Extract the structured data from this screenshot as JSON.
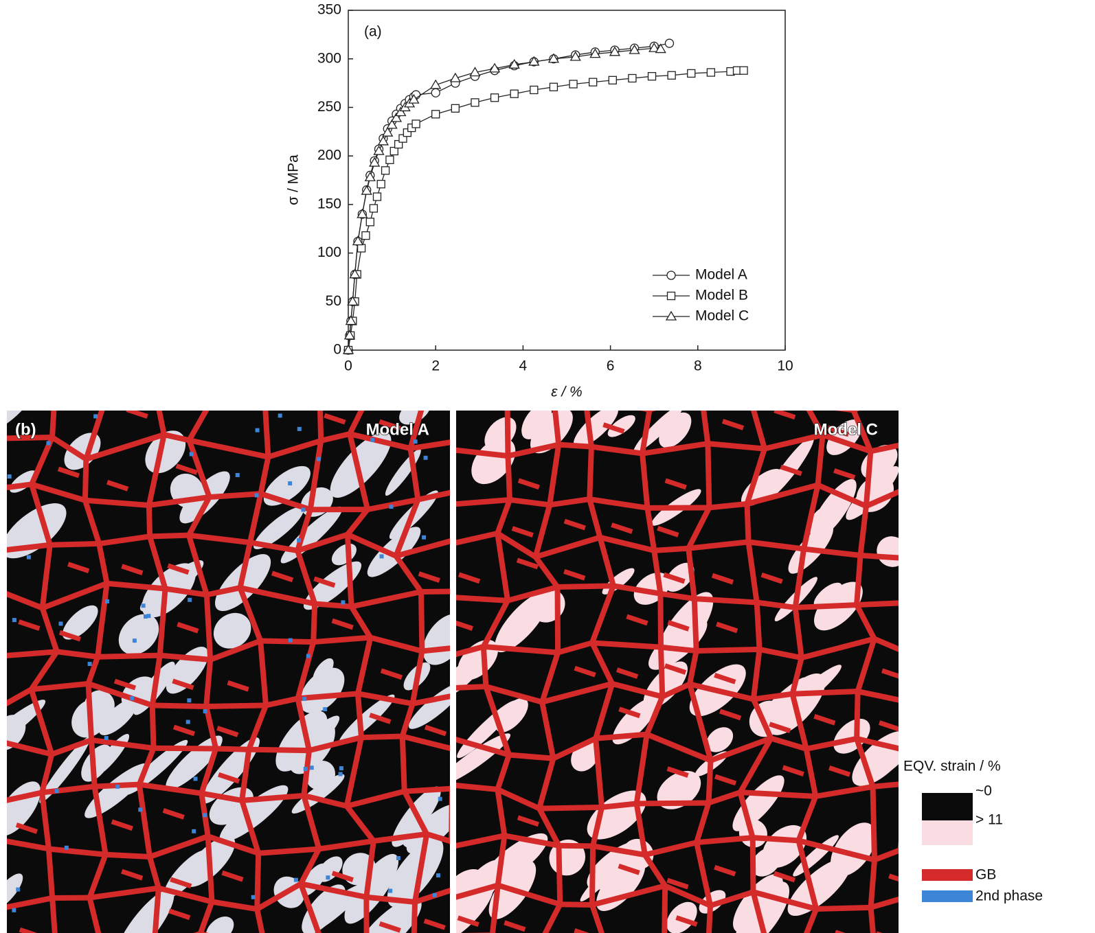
{
  "chart_data": {
    "type": "line",
    "panel_label": "(a)",
    "x_label": "ε / %",
    "y_label": "σ / MPa",
    "xlim": [
      0,
      10
    ],
    "xticks": [
      0,
      2,
      4,
      6,
      8,
      10
    ],
    "ylim": [
      0,
      350
    ],
    "yticks": [
      0,
      50,
      100,
      150,
      200,
      250,
      300,
      350
    ],
    "legend": "lower right",
    "series": [
      {
        "name": "Model A",
        "color": "#222222",
        "marker": "circle",
        "x": [
          0,
          0.03,
          0.06,
          0.1,
          0.15,
          0.22,
          0.32,
          0.42,
          0.5,
          0.6,
          0.7,
          0.8,
          0.9,
          1.0,
          1.1,
          1.2,
          1.3,
          1.4,
          1.5,
          1.55,
          2.0,
          2.45,
          2.9,
          3.35,
          3.8,
          4.25,
          4.7,
          5.2,
          5.65,
          6.1,
          6.55,
          7.0,
          7.35
        ],
        "values": [
          0,
          15,
          30,
          50,
          78,
          112,
          140,
          165,
          180,
          195,
          207,
          218,
          228,
          236,
          243,
          249,
          254,
          258,
          261,
          263,
          265,
          275,
          282,
          288,
          293,
          297,
          300,
          304,
          307,
          309,
          311,
          313,
          316
        ]
      },
      {
        "name": "Model B",
        "color": "#222222",
        "marker": "square",
        "x": [
          0,
          0.05,
          0.1,
          0.15,
          0.2,
          0.3,
          0.4,
          0.5,
          0.58,
          0.66,
          0.75,
          0.85,
          0.95,
          1.05,
          1.15,
          1.25,
          1.35,
          1.45,
          1.55,
          2.0,
          2.45,
          2.9,
          3.35,
          3.8,
          4.25,
          4.7,
          5.15,
          5.6,
          6.05,
          6.5,
          6.95,
          7.4,
          7.85,
          8.3,
          8.75,
          8.9,
          9.05
        ],
        "values": [
          0,
          15,
          30,
          50,
          78,
          105,
          118,
          132,
          146,
          158,
          171,
          185,
          196,
          205,
          212,
          218,
          224,
          229,
          233,
          243,
          249,
          255,
          260,
          264,
          268,
          271,
          274,
          276,
          278,
          280,
          282,
          283,
          285,
          286,
          287,
          288,
          288
        ]
      },
      {
        "name": "Model C",
        "color": "#222222",
        "marker": "triangle",
        "x": [
          0,
          0.03,
          0.06,
          0.1,
          0.15,
          0.22,
          0.32,
          0.42,
          0.5,
          0.6,
          0.7,
          0.8,
          0.9,
          1.0,
          1.1,
          1.2,
          1.3,
          1.4,
          1.5,
          2.0,
          2.45,
          2.9,
          3.35,
          3.8,
          4.25,
          4.7,
          5.2,
          5.65,
          6.1,
          6.55,
          7.0,
          7.15
        ],
        "values": [
          0,
          15,
          30,
          50,
          78,
          112,
          140,
          164,
          178,
          193,
          205,
          215,
          224,
          232,
          239,
          245,
          250,
          254,
          258,
          273,
          280,
          286,
          290,
          294,
          297,
          300,
          302,
          305,
          307,
          309,
          311,
          310
        ]
      }
    ]
  },
  "maps": {
    "panel_label": "(b)",
    "panels": [
      "Model A",
      "Model C"
    ],
    "legend": {
      "title": "EQV. strain / %",
      "scale": [
        "~0",
        "> 11"
      ],
      "items": [
        {
          "label": "GB",
          "color": "#d42a2a"
        },
        {
          "label": "2nd phase",
          "color": "#3d85d6"
        }
      ]
    }
  }
}
